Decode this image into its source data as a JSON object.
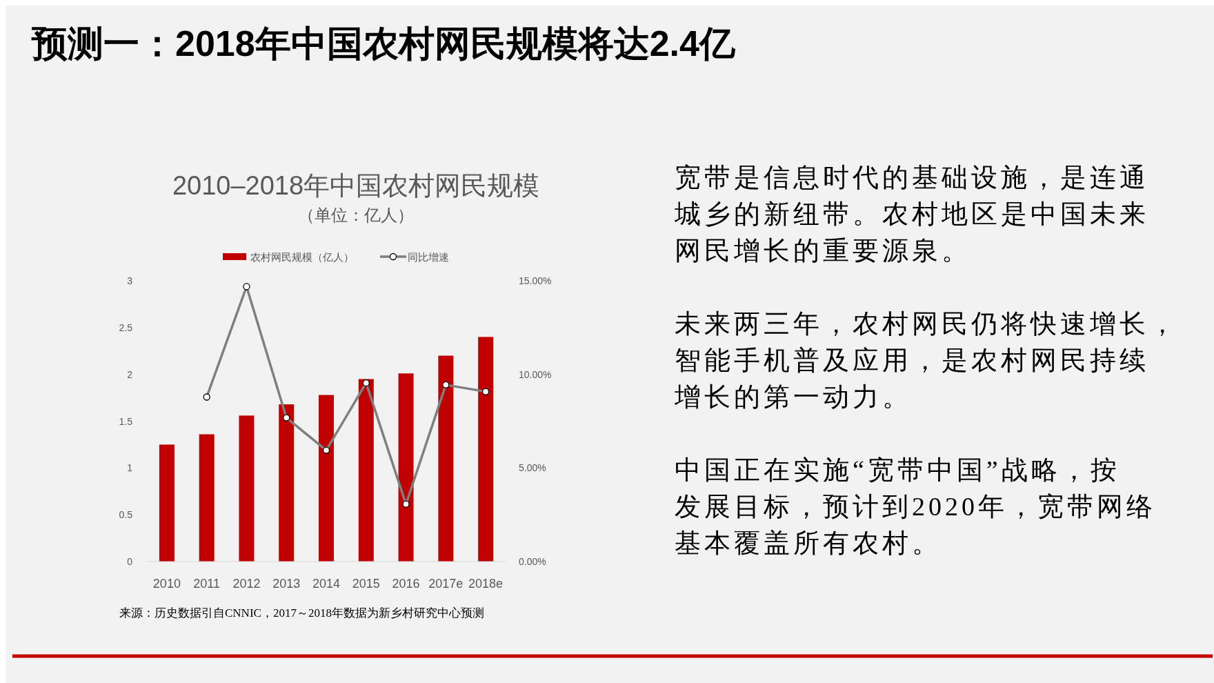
{
  "chart_data": {
    "type": "bar",
    "title": "预测一：2018年中国农村网民规模将达2.4亿",
    "subtitle": "2010–2018年中国农村网民规模",
    "annotations": [
      "（单位：亿人）",
      "宽带是信息时代的基础设施，是连通城乡的新纽带。农村地区是中国未来网民增长的重要源泉。",
      "未来两三年，农村网民仍将快速增长，智能手机普及应用，是农村网民持续增长的第一动力。",
      "中国正在实施“宽带中国”战略，按发展目标，预计到2020年，宽带网络基本覆盖所有农村。",
      "来源：历史数据引自CNNIC，2017～2018年数据为新乡村研究中心预测"
    ],
    "categories": [
      "2010",
      "2011",
      "2012",
      "2013",
      "2014",
      "2015",
      "2016",
      "2017e",
      "2018e"
    ],
    "series": [
      {
        "name": "农村网民规模（亿人）",
        "color": "#c00000",
        "values": [
          1.25,
          1.36,
          1.56,
          1.68,
          1.78,
          1.95,
          2.01,
          2.2,
          2.4
        ]
      },
      {
        "name": "同比增速",
        "type": "line",
        "axis": "y2",
        "color": "#7f7f7f",
        "marker": "circle",
        "values": [
          null,
          8.79,
          14.69,
          7.68,
          5.95,
          9.54,
          3.07,
          9.44,
          9.08
        ]
      }
    ],
    "ylim": [
      0,
      3
    ],
    "yticks": [
      0,
      0.5,
      1,
      1.5,
      2,
      2.5,
      3
    ],
    "y2lim": [
      0,
      15
    ],
    "y2ticks": [
      {
        "value": 0,
        "label": "0.00%"
      },
      {
        "value": 5,
        "label": "5.00%"
      },
      {
        "value": 10,
        "label": "10.00%"
      },
      {
        "value": 15,
        "label": "15.00%"
      }
    ],
    "grid": false,
    "legend": "top"
  }
}
